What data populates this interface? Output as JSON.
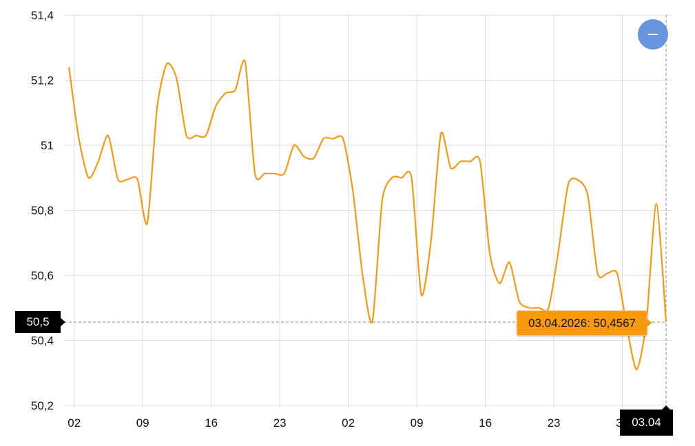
{
  "chart_data": {
    "type": "line",
    "title": "",
    "xlabel": "",
    "ylabel": "",
    "ylim": [
      50.2,
      51.4
    ],
    "y_ticks": [
      "50,2",
      "50,4",
      "50,6",
      "50,8",
      "51",
      "51,2",
      "51,4"
    ],
    "x_ticks": [
      {
        "date": "2026-02-02",
        "label": "02"
      },
      {
        "date": "2026-02-09",
        "label": "09"
      },
      {
        "date": "2026-02-16",
        "label": "16"
      },
      {
        "date": "2026-02-23",
        "label": "23"
      },
      {
        "date": "2026-03-02",
        "label": "02"
      },
      {
        "date": "2026-03-09",
        "label": "09"
      },
      {
        "date": "2026-03-16",
        "label": "16"
      },
      {
        "date": "2026-03-23",
        "label": "23"
      },
      {
        "date": "2026-03-30",
        "label": "30"
      }
    ],
    "xlim": [
      "2026-02-01",
      "2026-04-03"
    ],
    "grid": true,
    "line_color": "#f7990f",
    "series": [
      {
        "dates": [
          "2026-02-01",
          "2026-02-02",
          "2026-02-03",
          "2026-02-04",
          "2026-02-05",
          "2026-02-06",
          "2026-02-07",
          "2026-02-08",
          "2026-02-09",
          "2026-02-10",
          "2026-02-11",
          "2026-02-12",
          "2026-02-13",
          "2026-02-14",
          "2026-02-15",
          "2026-02-16",
          "2026-02-17",
          "2026-02-18",
          "2026-02-19",
          "2026-02-20",
          "2026-02-21",
          "2026-02-22",
          "2026-02-23",
          "2026-02-24",
          "2026-02-25",
          "2026-02-26",
          "2026-02-27",
          "2026-02-28",
          "2026-03-01",
          "2026-03-02",
          "2026-03-03",
          "2026-03-04",
          "2026-03-05",
          "2026-03-06",
          "2026-03-07",
          "2026-03-08",
          "2026-03-09",
          "2026-03-10",
          "2026-03-11",
          "2026-03-12",
          "2026-03-13",
          "2026-03-14",
          "2026-03-15",
          "2026-03-16",
          "2026-03-17",
          "2026-03-18",
          "2026-03-19",
          "2026-03-20",
          "2026-03-21",
          "2026-03-22",
          "2026-03-23",
          "2026-03-24",
          "2026-03-25",
          "2026-03-26",
          "2026-03-27",
          "2026-03-28",
          "2026-03-29",
          "2026-03-30",
          "2026-03-31",
          "2026-04-01",
          "2026-04-02",
          "2026-04-03"
        ],
        "values": [
          51.24,
          51.022,
          50.9,
          50.95,
          51.03,
          50.895,
          50.895,
          50.895,
          50.76,
          51.115,
          51.25,
          51.205,
          51.03,
          51.03,
          51.03,
          51.12,
          51.16,
          51.17,
          51.256,
          50.913,
          50.913,
          50.913,
          50.913,
          51.0,
          50.965,
          50.96,
          51.02,
          51.02,
          51.02,
          50.86,
          50.6,
          50.458,
          50.83,
          50.9,
          50.9,
          50.9,
          50.54,
          50.71,
          51.036,
          50.93,
          50.95,
          50.95,
          50.95,
          50.665,
          50.575,
          50.64,
          50.52,
          50.5,
          50.5,
          50.5,
          50.674,
          50.88,
          50.893,
          50.846,
          50.606,
          50.606,
          50.606,
          50.44,
          50.31,
          50.46,
          50.82,
          50.4567
        ]
      }
    ],
    "crosshair": {
      "y_label": "50,5",
      "x_label": "03.04",
      "tooltip": "03.04.2026: 50,4567"
    }
  },
  "controls": {
    "zoom_out_icon": "minus-icon",
    "zoom_out_color": "#6794dc"
  }
}
